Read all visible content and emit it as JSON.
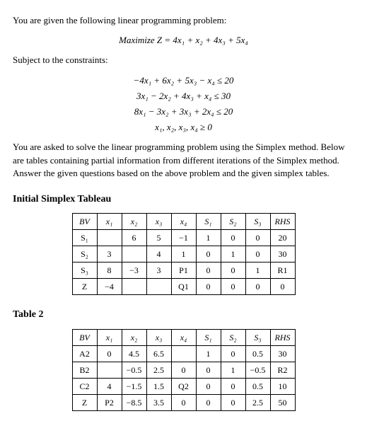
{
  "intro": "You are given the following linear programming problem:",
  "objective_label": "Maximize Z = 4x₁ + x₂ + 4x₃ + 5x₄",
  "subject_label": "Subject to the constraints:",
  "constraints": [
    "−4x₁ + 6x₂ + 5x₃ − x₄ ≤ 20",
    "3x₁ − 2x₂ + 4x₃ + x₄ ≤ 30",
    "8x₁ − 3x₂ + 3x₃ + 2x₄ ≤ 20",
    "x₁, x₂, x₃, x₄ ≥ 0"
  ],
  "explain": "You are asked to solve the linear programming problem using the Simplex method. Below are tables containing partial information from different iterations of the Simplex method. Answer the given questions based on the above problem and the given simplex tables.",
  "section1": "Initial Simplex Tableau",
  "section2": "Table 2",
  "t1": {
    "headers": [
      "BV",
      "x₁",
      "x₂",
      "x₃",
      "x₄",
      "S₁",
      "S₂",
      "S₃",
      "RHS"
    ],
    "rows": [
      [
        "S₁",
        "",
        "6",
        "5",
        "−1",
        "1",
        "0",
        "0",
        "20"
      ],
      [
        "S₂",
        "3",
        "",
        "4",
        "1",
        "0",
        "1",
        "0",
        "30"
      ],
      [
        "S₃",
        "8",
        "−3",
        "3",
        "P1",
        "0",
        "0",
        "1",
        "R1"
      ],
      [
        "Z",
        "−4",
        "",
        "",
        "Q1",
        "0",
        "0",
        "0",
        "0"
      ]
    ],
    "border_color": "#000",
    "fontsize": 12
  },
  "t2": {
    "headers": [
      "BV",
      "x₁",
      "x₂",
      "x₃",
      "x₄",
      "S₁",
      "S₂",
      "S₃",
      "RHS"
    ],
    "rows": [
      [
        "A2",
        "0",
        "4.5",
        "6.5",
        "",
        "1",
        "0",
        "0.5",
        "30"
      ],
      [
        "B2",
        "",
        "−0.5",
        "2.5",
        "0",
        "0",
        "1",
        "−0.5",
        "R2"
      ],
      [
        "C2",
        "4",
        "−1.5",
        "1.5",
        "Q2",
        "0",
        "0",
        "0.5",
        "10"
      ],
      [
        "Z",
        "P2",
        "−8.5",
        "3.5",
        "0",
        "0",
        "0",
        "2.5",
        "50"
      ]
    ],
    "border_color": "#000",
    "fontsize": 12
  },
  "colors": {
    "text": "#000000",
    "background": "#ffffff"
  }
}
